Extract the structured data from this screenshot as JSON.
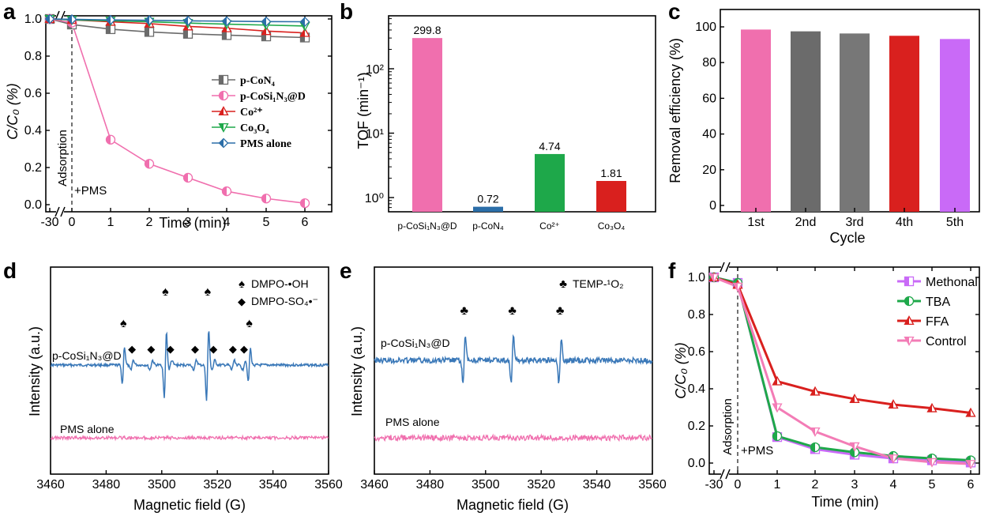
{
  "colors": {
    "gray": "#6b6b6b",
    "pink": "#f06fae",
    "red": "#d9201e",
    "green": "#1ea84a",
    "blue": "#2b6ea8",
    "teal": "#3a78b8",
    "violet": "#c96af7",
    "lightpink": "#f37cb6",
    "diamond": "#d27fe8"
  },
  "chart_data": [
    {
      "panel_label": "a",
      "type": "line",
      "xlabel": "Time (min)",
      "ylabel": "C/C₀ (%)",
      "xticks": [
        "-30",
        "0",
        "1",
        "2",
        "3",
        "4",
        "5",
        "6"
      ],
      "yticks": [
        "0.0",
        "0.2",
        "0.4",
        "0.6",
        "0.8",
        "1.0"
      ],
      "ylim": [
        0,
        1.05
      ],
      "annotations": [
        "Adsorption",
        "+PMS"
      ],
      "legend_position": "center-right",
      "x": [
        -30,
        0,
        1,
        2,
        3,
        4,
        5,
        6
      ],
      "series": [
        {
          "name": "p-CoN₄",
          "values": [
            1.0,
            0.97,
            0.945,
            0.93,
            0.92,
            0.913,
            0.906,
            0.9
          ]
        },
        {
          "name": "p-CoSi₁N₃@D",
          "values": [
            1.0,
            0.98,
            0.35,
            0.22,
            0.145,
            0.072,
            0.033,
            0.008
          ]
        },
        {
          "name": "Co²⁺",
          "values": [
            1.0,
            0.995,
            0.985,
            0.975,
            0.96,
            0.95,
            0.935,
            0.925
          ]
        },
        {
          "name": "Co₃O₄",
          "values": [
            1.0,
            0.995,
            0.99,
            0.985,
            0.978,
            0.972,
            0.967,
            0.962
          ]
        },
        {
          "name": "PMS alone",
          "values": [
            1.0,
            0.998,
            0.995,
            0.993,
            0.99,
            0.988,
            0.986,
            0.985
          ]
        }
      ]
    },
    {
      "panel_label": "b",
      "type": "bar",
      "ylabel": "TOF (min⁻¹)",
      "yscale": "log",
      "ylim": [
        0.5,
        600
      ],
      "yticks": [
        "10⁰",
        "10¹",
        "10²"
      ],
      "categories": [
        "p-CoSi₁N₃@D",
        "p-CoN₄",
        "Co²⁺",
        "Co₃O₄"
      ],
      "values": [
        299.8,
        0.72,
        4.74,
        1.81
      ],
      "data_labels": [
        "299.8",
        "0.72",
        "4.74",
        "1.81"
      ]
    },
    {
      "panel_label": "c",
      "type": "bar",
      "xlabel": "Cycle",
      "ylabel": "Removal efficiency (%)",
      "ylim": [
        -5,
        110
      ],
      "yticks": [
        "0",
        "20",
        "40",
        "60",
        "80",
        "100"
      ],
      "categories": [
        "1st",
        "2nd",
        "3rd",
        "4th",
        "5th"
      ],
      "values": [
        98.5,
        97.5,
        96.3,
        95.0,
        93.2
      ]
    },
    {
      "panel_label": "d",
      "type": "line",
      "xlabel": "Magnetic field (G)",
      "ylabel": "Intensity (a.u.)",
      "xlim": [
        3460,
        3560
      ],
      "xticks": [
        "3460",
        "3480",
        "3500",
        "3520",
        "3540",
        "3560"
      ],
      "legend": [
        "DMPO-•OH",
        "DMPO-SO₄•⁻"
      ],
      "legend_position": "top-right",
      "series": [
        {
          "name": "p-CoSi₁N₃@D",
          "peaks_OH": [
            3486.2,
            3501.3,
            3516.5,
            3531.5
          ],
          "peaks_SO4": [
            3489.3,
            3496.2,
            3503.1,
            3512.0,
            3518.6,
            3525.6,
            3529.6
          ]
        },
        {
          "name": "PMS alone"
        }
      ]
    },
    {
      "panel_label": "e",
      "type": "line",
      "xlabel": "Magnetic field (G)",
      "ylabel": "Intensity (a.u.)",
      "xlim": [
        3460,
        3560
      ],
      "xticks": [
        "3460",
        "3480",
        "3500",
        "3520",
        "3540",
        "3560"
      ],
      "legend": [
        "TEMP-¹O₂"
      ],
      "legend_position": "top-right",
      "series": [
        {
          "name": "p-CoSi₁N₃@D",
          "peaks": [
            3492.3,
            3509.6,
            3526.8
          ]
        },
        {
          "name": "PMS alone"
        }
      ]
    },
    {
      "panel_label": "f",
      "type": "line",
      "xlabel": "Time (min)",
      "ylabel": "C/C₀ (%)",
      "xticks": [
        "-30",
        "0",
        "1",
        "2",
        "3",
        "4",
        "5",
        "6"
      ],
      "yticks": [
        "0.0",
        "0.2",
        "0.4",
        "0.6",
        "0.8",
        "1.0"
      ],
      "ylim": [
        -0.05,
        1.05
      ],
      "annotations": [
        "Adsorption",
        "+PMS"
      ],
      "legend_position": "top-right",
      "x": [
        -30,
        0,
        1,
        2,
        3,
        4,
        5,
        6
      ],
      "series": [
        {
          "name": "Methonal",
          "values": [
            1.0,
            0.97,
            0.14,
            0.075,
            0.045,
            0.025,
            0.015,
            0.003
          ]
        },
        {
          "name": "TBA",
          "values": [
            1.0,
            0.97,
            0.145,
            0.085,
            0.058,
            0.038,
            0.025,
            0.015
          ]
        },
        {
          "name": "FFA",
          "values": [
            1.0,
            0.96,
            0.44,
            0.385,
            0.345,
            0.315,
            0.295,
            0.27
          ]
        },
        {
          "name": "Control",
          "values": [
            1.0,
            0.95,
            0.3,
            0.17,
            0.09,
            0.025,
            0.005,
            -0.005
          ]
        }
      ]
    }
  ]
}
